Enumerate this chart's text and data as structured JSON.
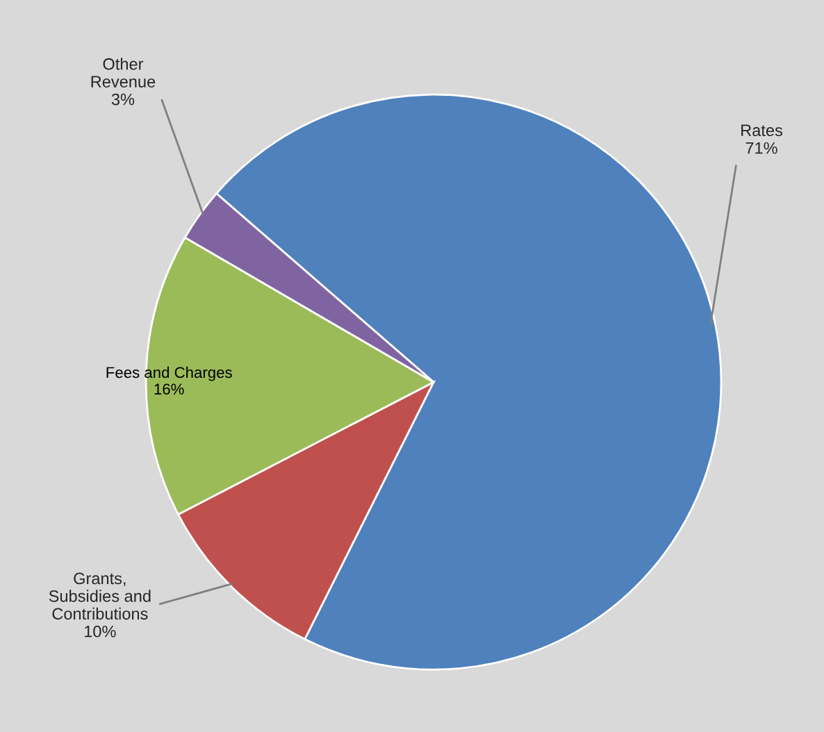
{
  "chart_data": {
    "type": "pie",
    "categories": [
      "Rates",
      "Grants,\nSubsidies and\nContributions",
      "Fees and Charges",
      "Other\nRevenue"
    ],
    "values": [
      71,
      10,
      16,
      3
    ],
    "value_labels": [
      "71%",
      "10%",
      "16%",
      "3%"
    ],
    "colors": [
      "#4f81bd",
      "#c0504d",
      "#9bbb59",
      "#8064a2"
    ]
  }
}
